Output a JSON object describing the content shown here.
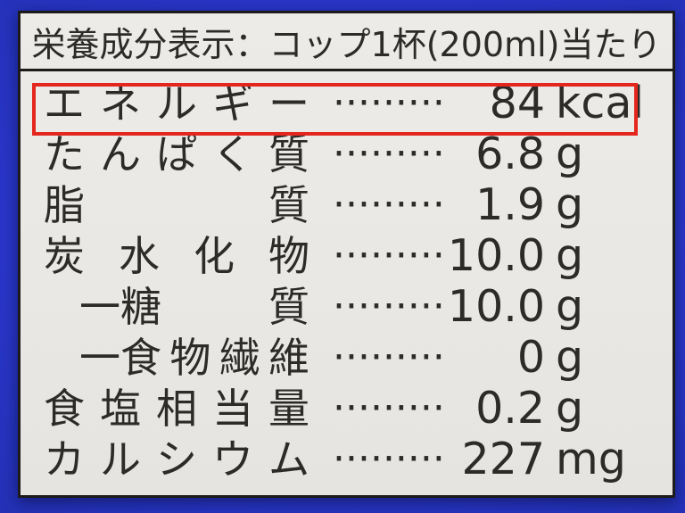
{
  "label": {
    "header": "栄養成分表示：コップ1杯(200ml)当たり",
    "highlight_color": "#e3271f",
    "rows": [
      {
        "name": "エネルギー",
        "name_units": [
          "エ",
          "ネ",
          "ル",
          "ギ",
          "ー"
        ],
        "indent": false,
        "leader": "·········",
        "value": "84",
        "unit": "kcal",
        "highlighted": true
      },
      {
        "name": "たんぱく質",
        "name_units": [
          "た",
          "ん",
          "ぱ",
          "く",
          "質"
        ],
        "indent": false,
        "leader": "·········",
        "value": "6.8",
        "unit": "g",
        "highlighted": false
      },
      {
        "name": "脂質",
        "name_units": [
          "脂",
          "質"
        ],
        "indent": false,
        "leader": "·········",
        "value": "1.9",
        "unit": "g",
        "highlighted": false
      },
      {
        "name": "炭水化物",
        "name_units": [
          "炭",
          "水",
          "化",
          "物"
        ],
        "indent": false,
        "leader": "·········",
        "value": "10.0",
        "unit": "g",
        "highlighted": false
      },
      {
        "name": "糖質",
        "name_units": [
          "一糖",
          "質"
        ],
        "indent": true,
        "leader": "·········",
        "value": "10.0",
        "unit": "g",
        "highlighted": false
      },
      {
        "name": "食物繊維",
        "name_units": [
          "一食",
          "物",
          "繊",
          "維"
        ],
        "indent": true,
        "leader": "·········",
        "value": "0",
        "unit": "g",
        "highlighted": false
      },
      {
        "name": "食塩相当量",
        "name_units": [
          "食",
          "塩",
          "相",
          "当",
          "量"
        ],
        "indent": false,
        "leader": "·········",
        "value": "0.2",
        "unit": "g",
        "highlighted": false
      },
      {
        "name": "カルシウム",
        "name_units": [
          "カ",
          "ル",
          "シ",
          "ウ",
          "ム"
        ],
        "indent": false,
        "leader": "·········",
        "value": "227",
        "unit": "mg",
        "highlighted": false
      }
    ]
  },
  "colors": {
    "package_blue": "#2936c9",
    "label_background": "#eae8e4",
    "label_border": "#1c1b19",
    "text": "#2d2b28",
    "highlight_red": "#e3271f"
  }
}
